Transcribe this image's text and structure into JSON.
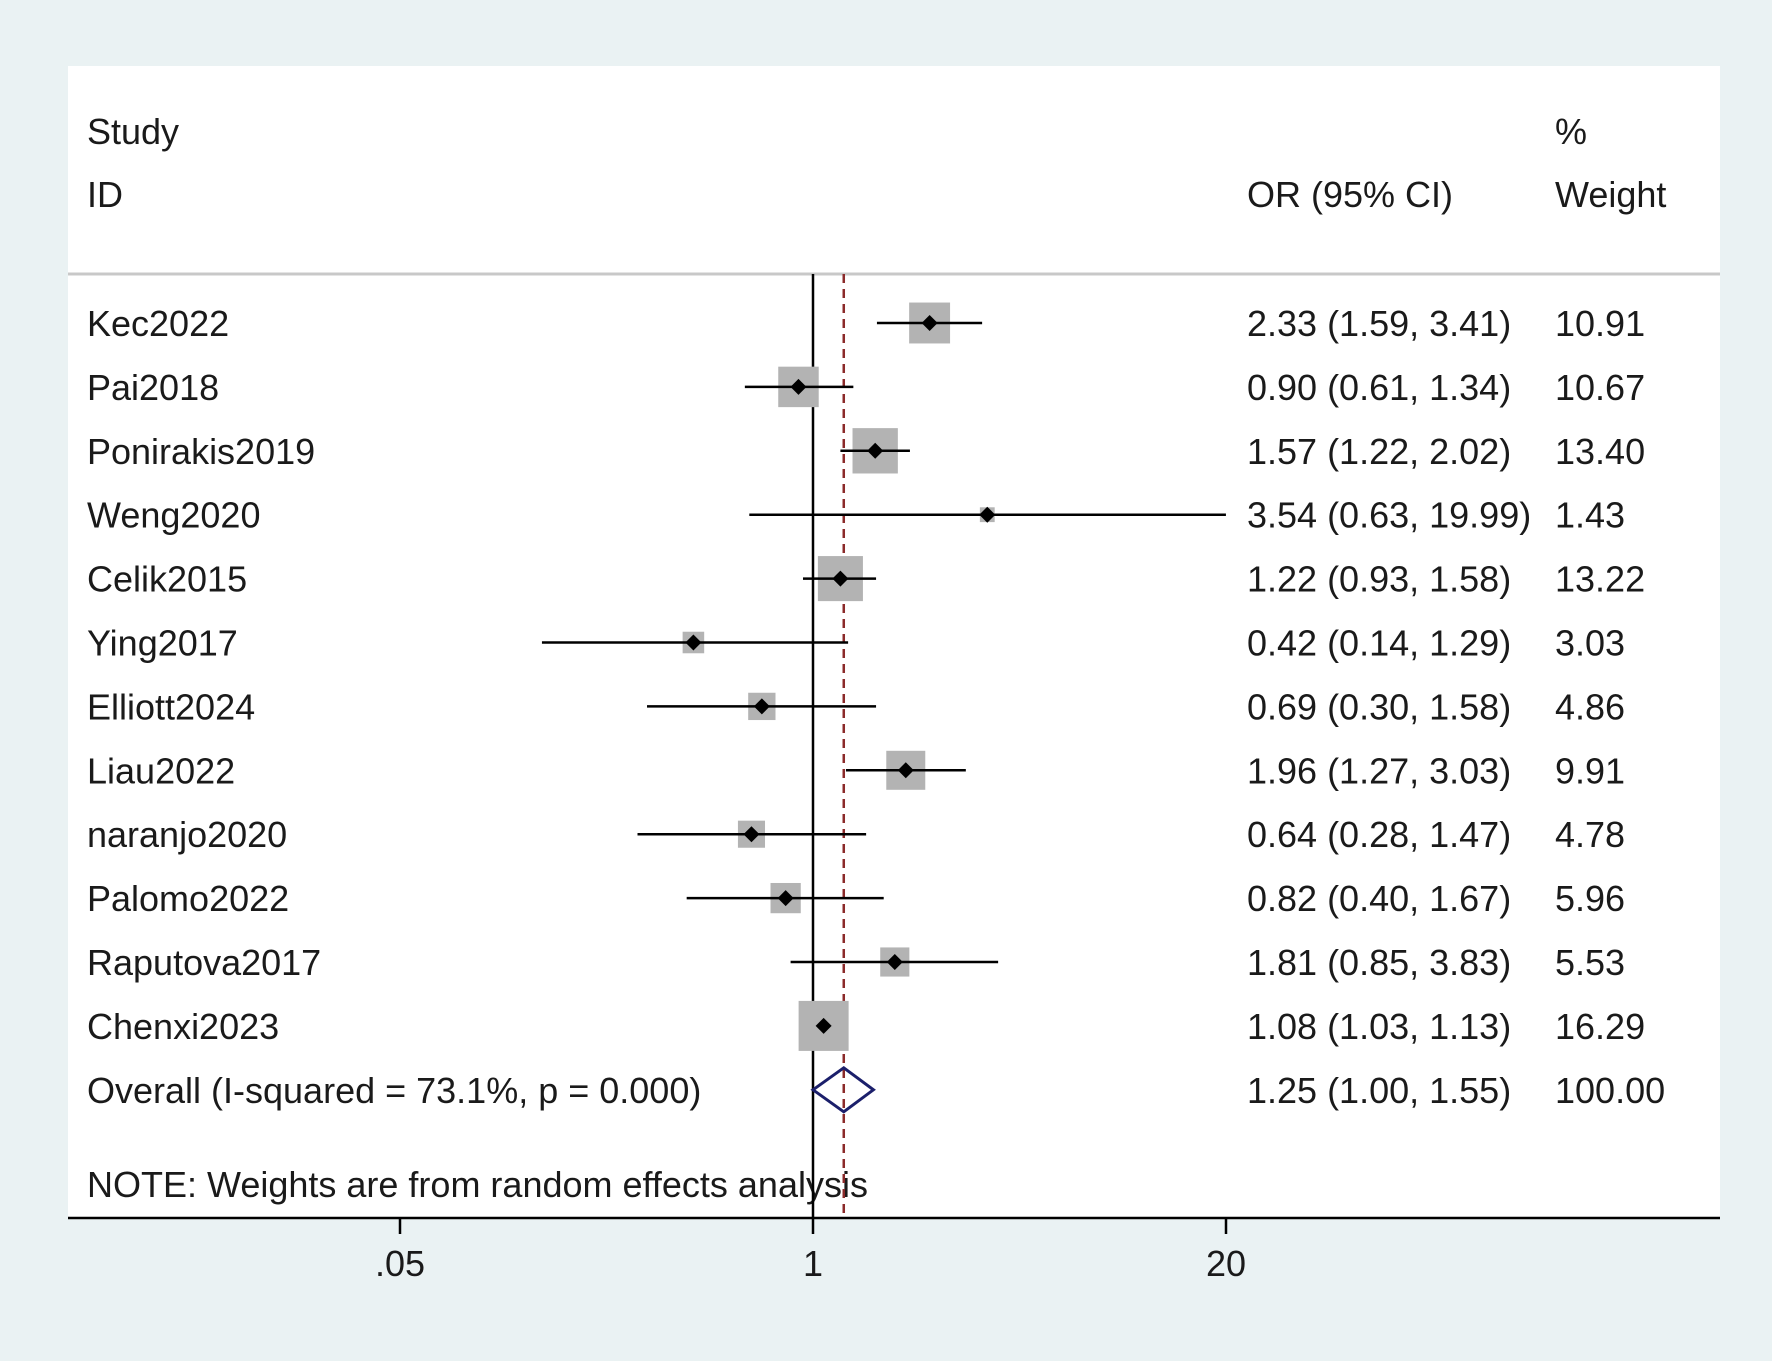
{
  "header": {
    "study_line1": "Study",
    "study_line2": "ID",
    "or_label": "OR (95% CI)",
    "weight_line1": "%",
    "weight_line2": "Weight"
  },
  "note": "NOTE: Weights are from random effects analysis",
  "colors": {
    "background": "#eaf2f3",
    "panel": "#ffffff",
    "box": "#b3b3b3",
    "marker": "#000000",
    "overall_diamond": "#1b1f6b",
    "ref_line": "#8b2a2a"
  },
  "chart_data": {
    "type": "forest",
    "scale": "log",
    "x_ticks": [
      {
        "value": 0.05,
        "label": ".05"
      },
      {
        "value": 1,
        "label": "1"
      },
      {
        "value": 20,
        "label": "20"
      }
    ],
    "null_line": 1,
    "overall_line": 1.25,
    "studies": [
      {
        "id": "Kec2022",
        "or": 2.33,
        "lo": 1.59,
        "hi": 3.41,
        "or_text": "2.33 (1.59, 3.41)",
        "weight": 10.91,
        "weight_text": "10.91"
      },
      {
        "id": "Pai2018",
        "or": 0.9,
        "lo": 0.61,
        "hi": 1.34,
        "or_text": "0.90 (0.61, 1.34)",
        "weight": 10.67,
        "weight_text": "10.67"
      },
      {
        "id": "Ponirakis2019",
        "or": 1.57,
        "lo": 1.22,
        "hi": 2.02,
        "or_text": "1.57 (1.22, 2.02)",
        "weight": 13.4,
        "weight_text": "13.40"
      },
      {
        "id": "Weng2020",
        "or": 3.54,
        "lo": 0.63,
        "hi": 19.99,
        "or_text": "3.54 (0.63, 19.99)",
        "weight": 1.43,
        "weight_text": "1.43"
      },
      {
        "id": "Celik2015",
        "or": 1.22,
        "lo": 0.93,
        "hi": 1.58,
        "or_text": "1.22 (0.93, 1.58)",
        "weight": 13.22,
        "weight_text": "13.22"
      },
      {
        "id": "Ying2017",
        "or": 0.42,
        "lo": 0.14,
        "hi": 1.29,
        "or_text": "0.42 (0.14, 1.29)",
        "weight": 3.03,
        "weight_text": "3.03"
      },
      {
        "id": "Elliott2024",
        "or": 0.69,
        "lo": 0.3,
        "hi": 1.58,
        "or_text": "0.69 (0.30, 1.58)",
        "weight": 4.86,
        "weight_text": "4.86"
      },
      {
        "id": "Liau2022",
        "or": 1.96,
        "lo": 1.27,
        "hi": 3.03,
        "or_text": "1.96 (1.27, 3.03)",
        "weight": 9.91,
        "weight_text": "9.91"
      },
      {
        "id": "naranjo2020",
        "or": 0.64,
        "lo": 0.28,
        "hi": 1.47,
        "or_text": "0.64 (0.28, 1.47)",
        "weight": 4.78,
        "weight_text": "4.78"
      },
      {
        "id": "Palomo2022",
        "or": 0.82,
        "lo": 0.4,
        "hi": 1.67,
        "or_text": "0.82 (0.40, 1.67)",
        "weight": 5.96,
        "weight_text": "5.96"
      },
      {
        "id": "Raputova2017",
        "or": 1.81,
        "lo": 0.85,
        "hi": 3.83,
        "or_text": "1.81 (0.85, 3.83)",
        "weight": 5.53,
        "weight_text": "5.53"
      },
      {
        "id": "Chenxi2023",
        "or": 1.08,
        "lo": 1.03,
        "hi": 1.13,
        "or_text": "1.08 (1.03, 1.13)",
        "weight": 16.29,
        "weight_text": "16.29"
      }
    ],
    "overall": {
      "label": "Overall  (I-squared = 73.1%, p = 0.000)",
      "or": 1.25,
      "lo": 1.0,
      "hi": 1.55,
      "or_text": "1.25 (1.00, 1.55)",
      "weight": 100.0,
      "weight_text": "100.00"
    }
  }
}
